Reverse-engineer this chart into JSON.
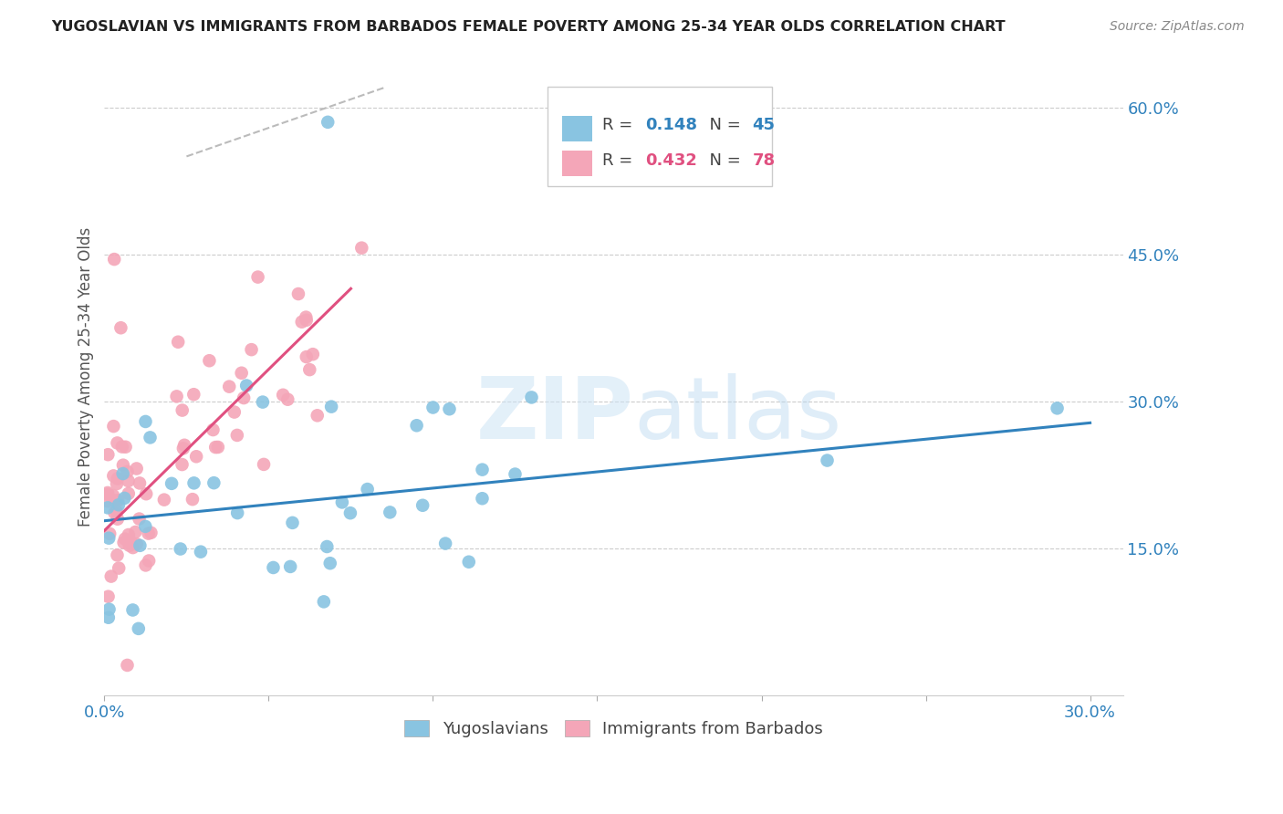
{
  "title": "YUGOSLAVIAN VS IMMIGRANTS FROM BARBADOS FEMALE POVERTY AMONG 25-34 YEAR OLDS CORRELATION CHART",
  "source": "Source: ZipAtlas.com",
  "ylabel": "Female Poverty Among 25-34 Year Olds",
  "xlim": [
    0.0,
    0.31
  ],
  "ylim": [
    0.0,
    0.65
  ],
  "y_ticks_right": [
    0.15,
    0.3,
    0.45,
    0.6
  ],
  "y_tick_labels_right": [
    "15.0%",
    "30.0%",
    "45.0%",
    "60.0%"
  ],
  "blue_color": "#89c4e1",
  "pink_color": "#f4a6b8",
  "trend_blue": "#3182bd",
  "trend_pink": "#e05080",
  "trend_gray": "#bbbbbb",
  "legend_R_blue": "0.148",
  "legend_N_blue": "45",
  "legend_R_pink": "0.432",
  "legend_N_pink": "78",
  "watermark_zip": "ZIP",
  "watermark_atlas": "atlas",
  "blue_trend_x": [
    0.0,
    0.3
  ],
  "blue_trend_y": [
    0.178,
    0.278
  ],
  "pink_trend_x": [
    0.0,
    0.075
  ],
  "pink_trend_y": [
    0.168,
    0.415
  ],
  "gray_trend_x": [
    0.025,
    0.085
  ],
  "gray_trend_y": [
    0.55,
    0.62
  ]
}
